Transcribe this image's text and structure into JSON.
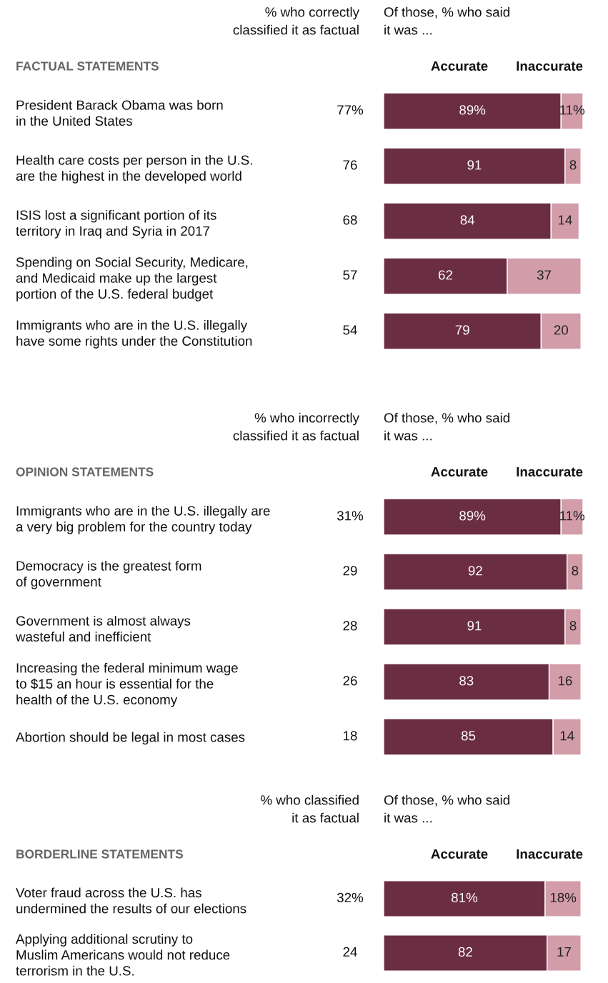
{
  "chart_data": [
    {
      "type": "bar",
      "orientation": "horizontal",
      "stacked": true,
      "title": "FACTUAL STATEMENTS",
      "categories": [
        "President Barack Obama was born\nin the United States",
        "Health care costs per person in the U.S.\nare the highest in the developed world",
        "ISIS lost a significant portion of its\nterritory in Iraq and Syria in 2017",
        "Spending on Social Security, Medicare,\nand Medicaid make up the largest\nportion of the U.S. federal budget",
        "Immigrants who are in the U.S. illegally\nhave some rights under the Constitution"
      ],
      "series": [
        {
          "name": "Accurate",
          "color": "#6b2d42",
          "values": [
            89,
            91,
            84,
            62,
            79
          ],
          "value_labels": [
            "89%",
            "91",
            "84",
            "62",
            "79"
          ]
        },
        {
          "name": "Inaccurate",
          "color": "#d29ca9",
          "values": [
            11,
            8,
            14,
            37,
            20
          ],
          "value_labels": [
            "11%",
            "8",
            "14",
            "37",
            "20"
          ]
        }
      ],
      "xlim": [
        0,
        100
      ],
      "tick_labels": "y",
      "annotations": [
        "% who correctly\nclassified it as factual",
        "Of those, % who said\nit was ...",
        "77%",
        "76",
        "68",
        "57",
        "54"
      ]
    },
    {
      "type": "bar",
      "orientation": "horizontal",
      "stacked": true,
      "title": "OPINION STATEMENTS",
      "categories": [
        "Immigrants who are in the U.S. illegally are\na very big problem for the country today",
        "Democracy is the greatest form\nof government",
        "Government is almost always\nwasteful and inefficient",
        "Increasing the federal minimum wage\nto $15 an hour is essential for the\nhealth of the U.S. economy",
        "Abortion should be legal in most cases"
      ],
      "series": [
        {
          "name": "Accurate",
          "color": "#6b2d42",
          "values": [
            89,
            92,
            91,
            83,
            85
          ],
          "value_labels": [
            "89%",
            "92",
            "91",
            "83",
            "85"
          ]
        },
        {
          "name": "Inaccurate",
          "color": "#d29ca9",
          "values": [
            11,
            8,
            8,
            16,
            14
          ],
          "value_labels": [
            "11%",
            "8",
            "8",
            "16",
            "14"
          ]
        }
      ],
      "xlim": [
        0,
        100
      ],
      "tick_labels": "y",
      "annotations": [
        "% who incorrectly\nclassified it as factual",
        "Of those, % who said\nit was ...",
        "31%",
        "29",
        "28",
        "26",
        "18"
      ]
    },
    {
      "type": "bar",
      "orientation": "horizontal",
      "stacked": true,
      "title": "BORDERLINE STATEMENTS",
      "categories": [
        "Voter fraud across the U.S. has\nundermined the results of our elections",
        "Applying additional scrutiny to\nMuslim Americans would not reduce\nterrorism in the U.S."
      ],
      "series": [
        {
          "name": "Accurate",
          "color": "#6b2d42",
          "values": [
            81,
            82
          ],
          "value_labels": [
            "81%",
            "82"
          ]
        },
        {
          "name": "Inaccurate",
          "color": "#d29ca9",
          "values": [
            18,
            17
          ],
          "value_labels": [
            "18%",
            "17"
          ]
        }
      ],
      "xlim": [
        0,
        100
      ],
      "tick_labels": "y",
      "annotations": [
        "% who classified\nit as factual",
        "Of those, % who said\nit was ...",
        "32%",
        "24"
      ]
    }
  ]
}
